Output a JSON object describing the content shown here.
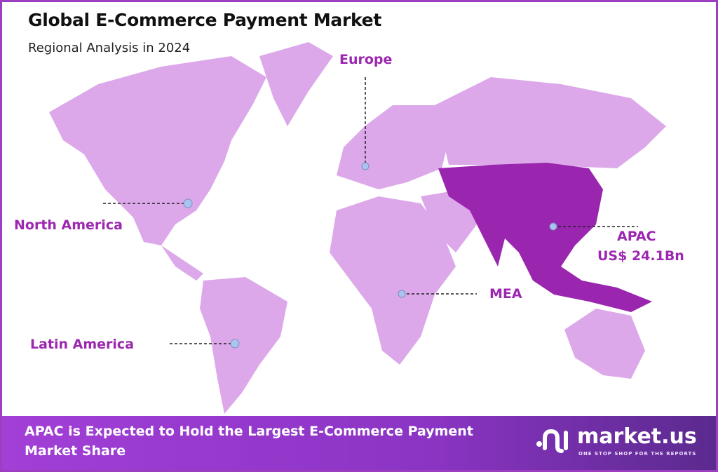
{
  "title": "Global E-Commerce Payment Market",
  "subtitle": "Regional Analysis in 2024",
  "regions": {
    "europe": "Europe",
    "north_america": "North America",
    "latin_america": "Latin America",
    "mea": "MEA",
    "apac": "APAC",
    "apac_value": "US$ 24.1Bn"
  },
  "highlighted_region": "APAC",
  "colors": {
    "land": "#dca8ea",
    "highlight": "#9a25ae",
    "label": "#9c27b0",
    "marker": "#a9c4ef"
  },
  "footer": {
    "text": "APAC is Expected to Hold the Largest E-Commerce Payment Market Share",
    "logo_word": "market.us",
    "logo_tagline": "ONE STOP SHOP FOR THE REPORTS"
  }
}
